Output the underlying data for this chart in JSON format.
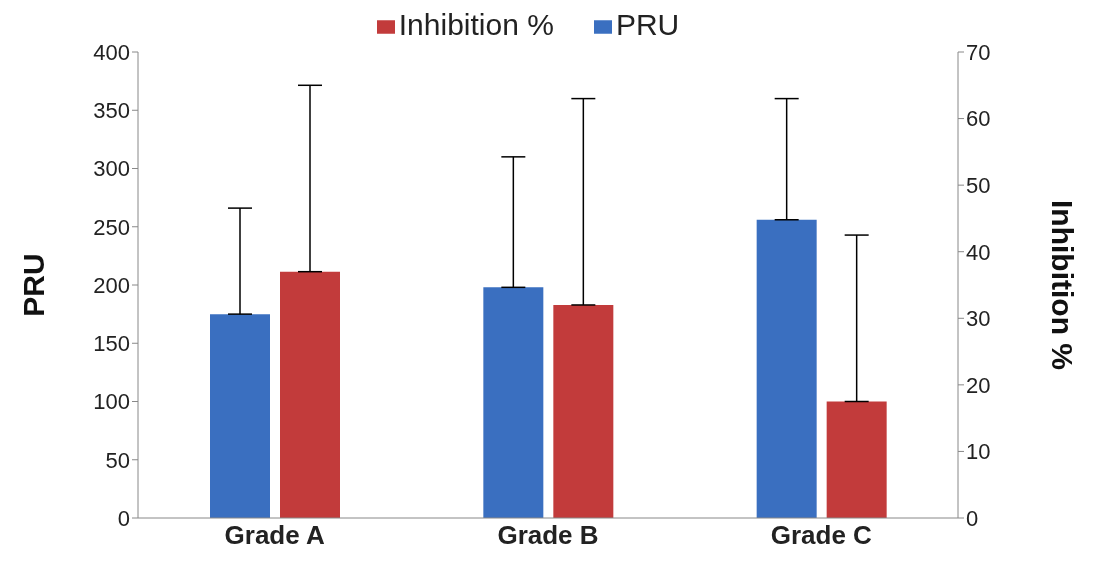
{
  "chart_data": {
    "type": "bar",
    "ylabel": "PRU",
    "y2label": "Inhibition %",
    "categories": [
      "Grade A",
      "Grade B",
      "Grade C"
    ],
    "series": [
      {
        "name": "PRU",
        "color": "#3a6fc0",
        "values": [
          175,
          198,
          256
        ],
        "errors": [
          [
            175,
            266
          ],
          [
            198,
            310
          ],
          [
            256,
            360
          ]
        ]
      },
      {
        "name": "Inhibition %",
        "color": "#c23b3b",
        "values": [
          37,
          32,
          17.5
        ],
        "errors": [
          [
            37,
            65
          ],
          [
            32,
            63
          ],
          [
            17.5,
            42.5
          ]
        ],
        "axis": "y2"
      }
    ],
    "ylim": [
      0,
      400
    ],
    "yticks": [
      0,
      50,
      100,
      150,
      200,
      250,
      300,
      350,
      400
    ],
    "y2lim": [
      0,
      70
    ],
    "y2ticks": [
      0,
      10,
      20,
      30,
      40,
      50,
      60,
      70
    ],
    "grid": false,
    "legend": "top"
  }
}
